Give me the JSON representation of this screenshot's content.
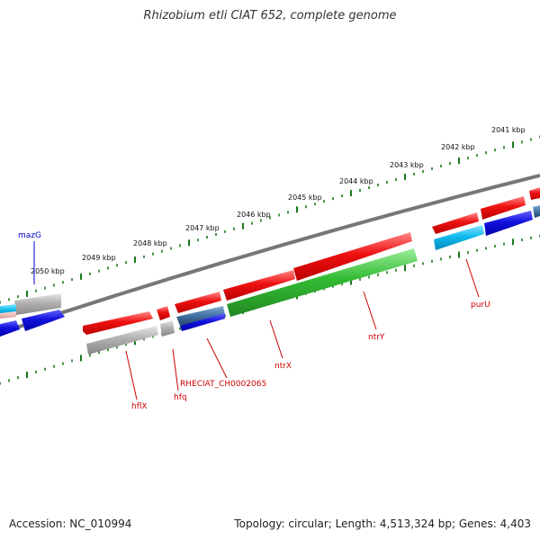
{
  "title": "Rhizobium etli CIAT 652, complete genome",
  "footer": {
    "accession": "Accession: NC_010994",
    "topology": "Topology: circular; Length: 4,513,324 bp; Genes: 4,403"
  },
  "ticks": [
    "2041 kbp",
    "2042 kbp",
    "2043 kbp",
    "2044 kbp",
    "2045 kbp",
    "2046 kbp",
    "2047 kbp",
    "2048 kbp",
    "2049 kbp",
    "2050 kbp"
  ],
  "gene_labels": [
    {
      "name": "mazG",
      "color": "#0000cc"
    },
    {
      "name": "hflX",
      "color": "#cc0000"
    },
    {
      "name": "hfq",
      "color": "#cc0000"
    },
    {
      "name": "RHECIAT_CH0002065",
      "color": "#cc0000"
    },
    {
      "name": "ntrX",
      "color": "#cc0000"
    },
    {
      "name": "ntrY",
      "color": "#cc0000"
    },
    {
      "name": "purU",
      "color": "#cc0000"
    }
  ],
  "colors": {
    "backbone": "#777777",
    "tick_marks": "#1a7a1a",
    "feature_red": "#ee1111",
    "feature_blue": "#1111dd",
    "feature_gray": "#aaaaaa",
    "feature_green": "#33bb33",
    "feature_cyan": "#11bbee",
    "feature_steel": "#4477aa"
  }
}
